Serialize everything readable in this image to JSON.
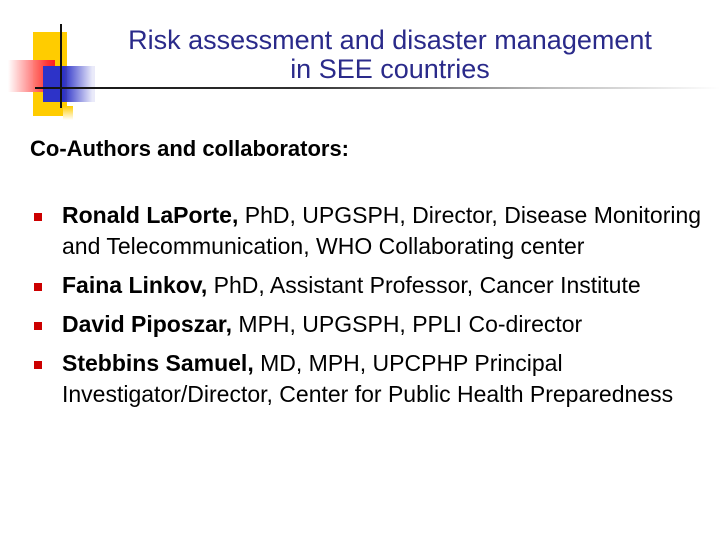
{
  "slide": {
    "title_line1": "Risk assessment and disaster management",
    "title_line2": "in SEE countries",
    "subtitle": "Co-Authors and collaborators:",
    "accent_colors": {
      "title": "#2a2a8a",
      "bullet": "#cc0000",
      "yellow": "#ffcc00",
      "blue": "#2d33c8",
      "red": "#ff2020"
    },
    "bullet_icon": "square-bullet",
    "items": [
      {
        "name": "Ronald LaPorte,",
        "details": " PhD, UPGSPH, Director, Disease Monitoring and Telecommunication, WHO Collaborating center"
      },
      {
        "name": "Faina Linkov,",
        "details": " PhD, Assistant Professor, Cancer Institute"
      },
      {
        "name": "David Piposzar,",
        "details": " MPH, UPGSPH, PPLI Co-director"
      },
      {
        "name": "Stebbins Samuel,",
        "details": " MD, MPH, UPCPHP Principal Investigator/Director, Center for Public Health Preparedness"
      }
    ]
  }
}
